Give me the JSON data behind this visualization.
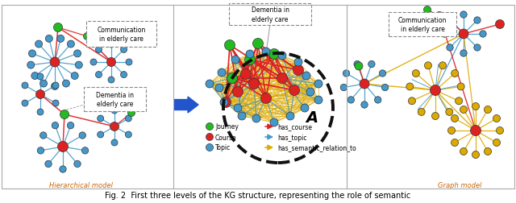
{
  "title": "Fig. 2  First three levels of the KG structure, representing the role of semantic",
  "label_hierarchical": "Hierarchical model",
  "label_graph": "Graph model",
  "GREEN": "#22bb22",
  "RED": "#dd2222",
  "BLUE": "#4499cc",
  "YELLOW": "#ddaa00",
  "DARK_BLUE_ARROW": "#2255cc",
  "background_color": "#ffffff"
}
